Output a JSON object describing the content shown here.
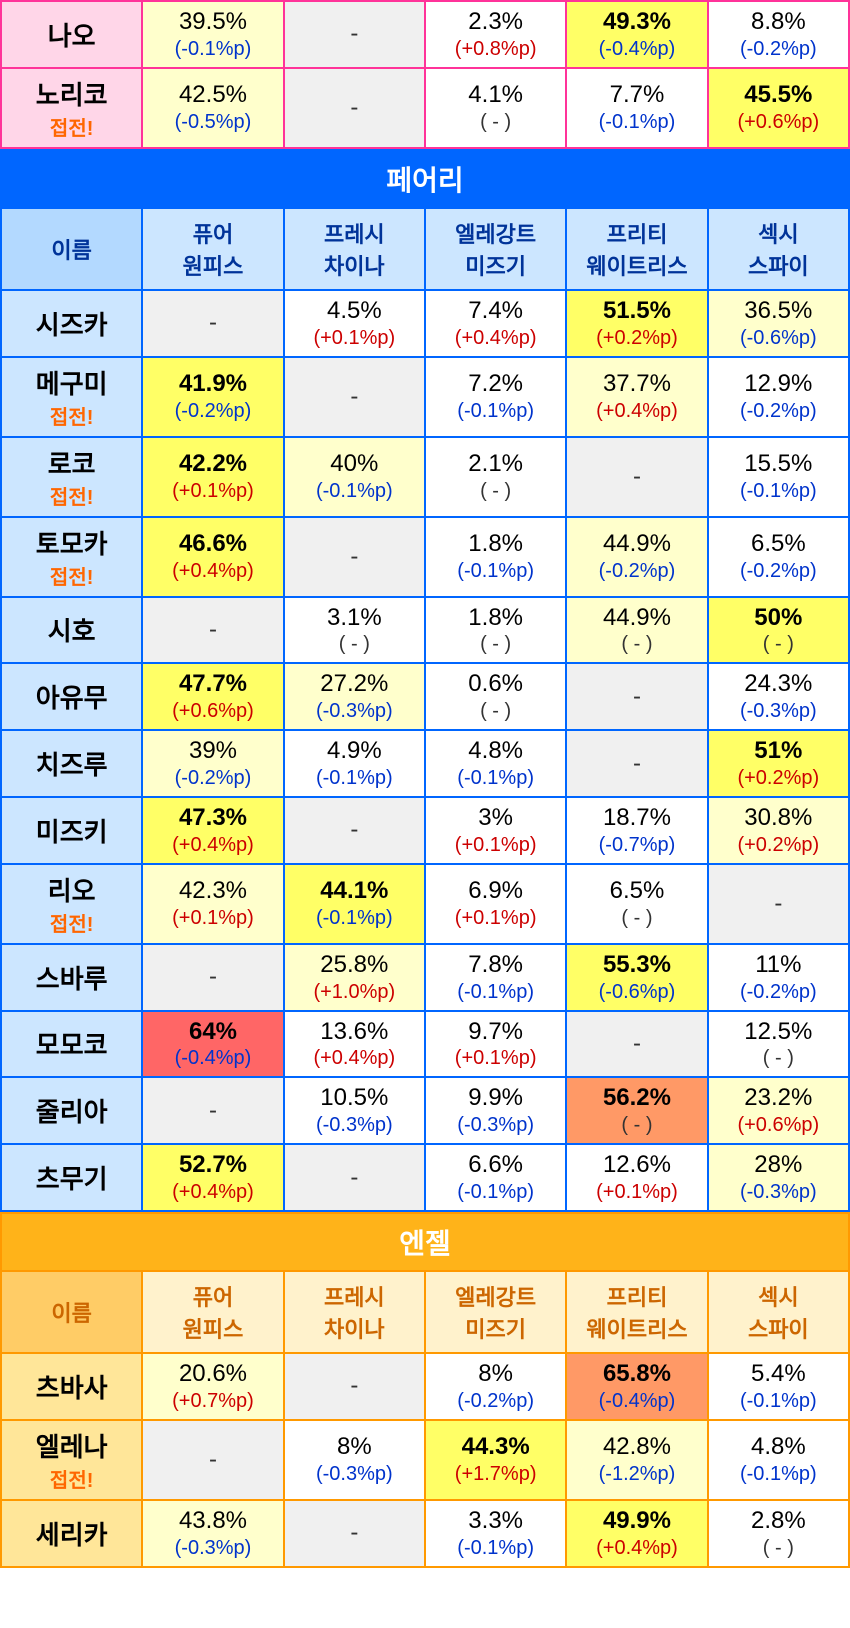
{
  "columns": [
    "퓨어\n원피스",
    "프레시\n차이나",
    "엘레강트\n미즈기",
    "프리티\n웨이트리스",
    "섹시\n스파이"
  ],
  "nameCol": "이름",
  "closeText": "접전!",
  "sections": [
    {
      "id": "pink",
      "borderClass": "pink-border",
      "nameClass": "pink-name",
      "rows": [
        {
          "name": "나오",
          "close": false,
          "cells": [
            {
              "pct": "39.5%",
              "delta": "(-0.1%p)",
              "dClass": "neg",
              "bg": "hl-yellow-lt",
              "bold": false
            },
            {
              "dash": true,
              "bg": "hl-gray"
            },
            {
              "pct": "2.3%",
              "delta": "(+0.8%p)",
              "dClass": "pos",
              "bg": "hl-white",
              "bold": false
            },
            {
              "pct": "49.3%",
              "delta": "(-0.4%p)",
              "dClass": "neg",
              "bg": "hl-yellow",
              "bold": true
            },
            {
              "pct": "8.8%",
              "delta": "(-0.2%p)",
              "dClass": "neg",
              "bg": "hl-white",
              "bold": false
            }
          ]
        },
        {
          "name": "노리코",
          "close": true,
          "cells": [
            {
              "pct": "42.5%",
              "delta": "(-0.5%p)",
              "dClass": "neg",
              "bg": "hl-yellow-lt",
              "bold": false
            },
            {
              "dash": true,
              "bg": "hl-gray"
            },
            {
              "pct": "4.1%",
              "delta": "( - )",
              "dClass": "neu",
              "bg": "hl-white",
              "bold": false
            },
            {
              "pct": "7.7%",
              "delta": "(-0.1%p)",
              "dClass": "neg",
              "bg": "hl-white",
              "bold": false
            },
            {
              "pct": "45.5%",
              "delta": "(+0.6%p)",
              "dClass": "pos",
              "bg": "hl-yellow",
              "bold": true
            }
          ]
        }
      ]
    },
    {
      "id": "blue",
      "title": "페어리",
      "borderClass": "blue-border",
      "headerBg": "blue-header-bg",
      "colHeadBg": "blue-colhead-bg",
      "nameColBg": "blue-name-col",
      "nameClass": "blue-name",
      "rows": [
        {
          "name": "시즈카",
          "close": false,
          "cells": [
            {
              "dash": true,
              "bg": "hl-gray"
            },
            {
              "pct": "4.5%",
              "delta": "(+0.1%p)",
              "dClass": "pos",
              "bg": "hl-white",
              "bold": false
            },
            {
              "pct": "7.4%",
              "delta": "(+0.4%p)",
              "dClass": "pos",
              "bg": "hl-white",
              "bold": false
            },
            {
              "pct": "51.5%",
              "delta": "(+0.2%p)",
              "dClass": "pos",
              "bg": "hl-yellow",
              "bold": true
            },
            {
              "pct": "36.5%",
              "delta": "(-0.6%p)",
              "dClass": "neg",
              "bg": "hl-yellow-lt",
              "bold": false
            }
          ]
        },
        {
          "name": "메구미",
          "close": true,
          "cells": [
            {
              "pct": "41.9%",
              "delta": "(-0.2%p)",
              "dClass": "neg",
              "bg": "hl-yellow",
              "bold": true
            },
            {
              "dash": true,
              "bg": "hl-gray"
            },
            {
              "pct": "7.2%",
              "delta": "(-0.1%p)",
              "dClass": "neg",
              "bg": "hl-white",
              "bold": false
            },
            {
              "pct": "37.7%",
              "delta": "(+0.4%p)",
              "dClass": "pos",
              "bg": "hl-yellow-lt",
              "bold": false
            },
            {
              "pct": "12.9%",
              "delta": "(-0.2%p)",
              "dClass": "neg",
              "bg": "hl-white",
              "bold": false
            }
          ]
        },
        {
          "name": "로코",
          "close": true,
          "cells": [
            {
              "pct": "42.2%",
              "delta": "(+0.1%p)",
              "dClass": "pos",
              "bg": "hl-yellow",
              "bold": true
            },
            {
              "pct": "40%",
              "delta": "(-0.1%p)",
              "dClass": "neg",
              "bg": "hl-yellow-lt",
              "bold": false
            },
            {
              "pct": "2.1%",
              "delta": "( - )",
              "dClass": "neu",
              "bg": "hl-white",
              "bold": false
            },
            {
              "dash": true,
              "bg": "hl-gray"
            },
            {
              "pct": "15.5%",
              "delta": "(-0.1%p)",
              "dClass": "neg",
              "bg": "hl-white",
              "bold": false
            }
          ]
        },
        {
          "name": "토모카",
          "close": true,
          "cells": [
            {
              "pct": "46.6%",
              "delta": "(+0.4%p)",
              "dClass": "pos",
              "bg": "hl-yellow",
              "bold": true
            },
            {
              "dash": true,
              "bg": "hl-gray"
            },
            {
              "pct": "1.8%",
              "delta": "(-0.1%p)",
              "dClass": "neg",
              "bg": "hl-white",
              "bold": false
            },
            {
              "pct": "44.9%",
              "delta": "(-0.2%p)",
              "dClass": "neg",
              "bg": "hl-yellow-lt",
              "bold": false
            },
            {
              "pct": "6.5%",
              "delta": "(-0.2%p)",
              "dClass": "neg",
              "bg": "hl-white",
              "bold": false
            }
          ]
        },
        {
          "name": "시호",
          "close": false,
          "cells": [
            {
              "dash": true,
              "bg": "hl-gray"
            },
            {
              "pct": "3.1%",
              "delta": "( - )",
              "dClass": "neu",
              "bg": "hl-white",
              "bold": false
            },
            {
              "pct": "1.8%",
              "delta": "( - )",
              "dClass": "neu",
              "bg": "hl-white",
              "bold": false
            },
            {
              "pct": "44.9%",
              "delta": "( - )",
              "dClass": "neu",
              "bg": "hl-yellow-lt",
              "bold": false
            },
            {
              "pct": "50%",
              "delta": "( - )",
              "dClass": "neu",
              "bg": "hl-yellow",
              "bold": true
            }
          ]
        },
        {
          "name": "아유무",
          "close": false,
          "cells": [
            {
              "pct": "47.7%",
              "delta": "(+0.6%p)",
              "dClass": "pos",
              "bg": "hl-yellow",
              "bold": true
            },
            {
              "pct": "27.2%",
              "delta": "(-0.3%p)",
              "dClass": "neg",
              "bg": "hl-yellow-lt",
              "bold": false
            },
            {
              "pct": "0.6%",
              "delta": "( - )",
              "dClass": "neu",
              "bg": "hl-white",
              "bold": false
            },
            {
              "dash": true,
              "bg": "hl-gray"
            },
            {
              "pct": "24.3%",
              "delta": "(-0.3%p)",
              "dClass": "neg",
              "bg": "hl-white",
              "bold": false
            }
          ]
        },
        {
          "name": "치즈루",
          "close": false,
          "cells": [
            {
              "pct": "39%",
              "delta": "(-0.2%p)",
              "dClass": "neg",
              "bg": "hl-yellow-lt",
              "bold": false
            },
            {
              "pct": "4.9%",
              "delta": "(-0.1%p)",
              "dClass": "neg",
              "bg": "hl-white",
              "bold": false
            },
            {
              "pct": "4.8%",
              "delta": "(-0.1%p)",
              "dClass": "neg",
              "bg": "hl-white",
              "bold": false
            },
            {
              "dash": true,
              "bg": "hl-gray"
            },
            {
              "pct": "51%",
              "delta": "(+0.2%p)",
              "dClass": "pos",
              "bg": "hl-yellow",
              "bold": true
            }
          ]
        },
        {
          "name": "미즈키",
          "close": false,
          "cells": [
            {
              "pct": "47.3%",
              "delta": "(+0.4%p)",
              "dClass": "pos",
              "bg": "hl-yellow",
              "bold": true
            },
            {
              "dash": true,
              "bg": "hl-gray"
            },
            {
              "pct": "3%",
              "delta": "(+0.1%p)",
              "dClass": "pos",
              "bg": "hl-white",
              "bold": false
            },
            {
              "pct": "18.7%",
              "delta": "(-0.7%p)",
              "dClass": "neg",
              "bg": "hl-white",
              "bold": false
            },
            {
              "pct": "30.8%",
              "delta": "(+0.2%p)",
              "dClass": "pos",
              "bg": "hl-yellow-lt",
              "bold": false
            }
          ]
        },
        {
          "name": "리오",
          "close": true,
          "cells": [
            {
              "pct": "42.3%",
              "delta": "(+0.1%p)",
              "dClass": "pos",
              "bg": "hl-yellow-lt",
              "bold": false
            },
            {
              "pct": "44.1%",
              "delta": "(-0.1%p)",
              "dClass": "neg",
              "bg": "hl-yellow",
              "bold": true
            },
            {
              "pct": "6.9%",
              "delta": "(+0.1%p)",
              "dClass": "pos",
              "bg": "hl-white",
              "bold": false
            },
            {
              "pct": "6.5%",
              "delta": "( - )",
              "dClass": "neu",
              "bg": "hl-white",
              "bold": false
            },
            {
              "dash": true,
              "bg": "hl-gray"
            }
          ]
        },
        {
          "name": "스바루",
          "close": false,
          "cells": [
            {
              "dash": true,
              "bg": "hl-gray"
            },
            {
              "pct": "25.8%",
              "delta": "(+1.0%p)",
              "dClass": "pos",
              "bg": "hl-yellow-lt",
              "bold": false
            },
            {
              "pct": "7.8%",
              "delta": "(-0.1%p)",
              "dClass": "neg",
              "bg": "hl-white",
              "bold": false
            },
            {
              "pct": "55.3%",
              "delta": "(-0.6%p)",
              "dClass": "neg",
              "bg": "hl-yellow",
              "bold": true
            },
            {
              "pct": "11%",
              "delta": "(-0.2%p)",
              "dClass": "neg",
              "bg": "hl-white",
              "bold": false
            }
          ]
        },
        {
          "name": "모모코",
          "close": false,
          "cells": [
            {
              "pct": "64%",
              "delta": "(-0.4%p)",
              "dClass": "neg",
              "bg": "hl-red",
              "bold": true
            },
            {
              "pct": "13.6%",
              "delta": "(+0.4%p)",
              "dClass": "pos",
              "bg": "hl-white",
              "bold": false
            },
            {
              "pct": "9.7%",
              "delta": "(+0.1%p)",
              "dClass": "pos",
              "bg": "hl-white",
              "bold": false
            },
            {
              "dash": true,
              "bg": "hl-gray"
            },
            {
              "pct": "12.5%",
              "delta": "( - )",
              "dClass": "neu",
              "bg": "hl-white",
              "bold": false
            }
          ]
        },
        {
          "name": "줄리아",
          "close": false,
          "cells": [
            {
              "dash": true,
              "bg": "hl-gray"
            },
            {
              "pct": "10.5%",
              "delta": "(-0.3%p)",
              "dClass": "neg",
              "bg": "hl-white",
              "bold": false
            },
            {
              "pct": "9.9%",
              "delta": "(-0.3%p)",
              "dClass": "neg",
              "bg": "hl-white",
              "bold": false
            },
            {
              "pct": "56.2%",
              "delta": "( - )",
              "dClass": "neu",
              "bg": "hl-orange",
              "bold": true
            },
            {
              "pct": "23.2%",
              "delta": "(+0.6%p)",
              "dClass": "pos",
              "bg": "hl-yellow-lt",
              "bold": false
            }
          ]
        },
        {
          "name": "츠무기",
          "close": false,
          "cells": [
            {
              "pct": "52.7%",
              "delta": "(+0.4%p)",
              "dClass": "pos",
              "bg": "hl-yellow",
              "bold": true
            },
            {
              "dash": true,
              "bg": "hl-gray"
            },
            {
              "pct": "6.6%",
              "delta": "(-0.1%p)",
              "dClass": "neg",
              "bg": "hl-white",
              "bold": false
            },
            {
              "pct": "12.6%",
              "delta": "(+0.1%p)",
              "dClass": "pos",
              "bg": "hl-white",
              "bold": false
            },
            {
              "pct": "28%",
              "delta": "(-0.3%p)",
              "dClass": "neg",
              "bg": "hl-yellow-lt",
              "bold": false
            }
          ]
        }
      ]
    },
    {
      "id": "orange",
      "title": "엔젤",
      "borderClass": "orange-border",
      "headerBg": "orange-header-bg",
      "colHeadBg": "orange-colhead-bg",
      "nameColBg": "orange-name-col",
      "nameClass": "orange-name",
      "rows": [
        {
          "name": "츠바사",
          "close": false,
          "cells": [
            {
              "pct": "20.6%",
              "delta": "(+0.7%p)",
              "dClass": "pos",
              "bg": "hl-yellow-lt",
              "bold": false
            },
            {
              "dash": true,
              "bg": "hl-gray"
            },
            {
              "pct": "8%",
              "delta": "(-0.2%p)",
              "dClass": "neg",
              "bg": "hl-white",
              "bold": false
            },
            {
              "pct": "65.8%",
              "delta": "(-0.4%p)",
              "dClass": "neg",
              "bg": "hl-orange",
              "bold": true
            },
            {
              "pct": "5.4%",
              "delta": "(-0.1%p)",
              "dClass": "neg",
              "bg": "hl-white",
              "bold": false
            }
          ]
        },
        {
          "name": "엘레나",
          "close": true,
          "cells": [
            {
              "dash": true,
              "bg": "hl-gray"
            },
            {
              "pct": "8%",
              "delta": "(-0.3%p)",
              "dClass": "neg",
              "bg": "hl-white",
              "bold": false
            },
            {
              "pct": "44.3%",
              "delta": "(+1.7%p)",
              "dClass": "pos",
              "bg": "hl-yellow",
              "bold": true
            },
            {
              "pct": "42.8%",
              "delta": "(-1.2%p)",
              "dClass": "neg",
              "bg": "hl-yellow-lt",
              "bold": false
            },
            {
              "pct": "4.8%",
              "delta": "(-0.1%p)",
              "dClass": "neg",
              "bg": "hl-white",
              "bold": false
            }
          ]
        },
        {
          "name": "세리카",
          "close": false,
          "cells": [
            {
              "pct": "43.8%",
              "delta": "(-0.3%p)",
              "dClass": "neg",
              "bg": "hl-yellow-lt",
              "bold": false
            },
            {
              "dash": true,
              "bg": "hl-gray"
            },
            {
              "pct": "3.3%",
              "delta": "(-0.1%p)",
              "dClass": "neg",
              "bg": "hl-white",
              "bold": false
            },
            {
              "pct": "49.9%",
              "delta": "(+0.4%p)",
              "dClass": "pos",
              "bg": "hl-yellow",
              "bold": true
            },
            {
              "pct": "2.8%",
              "delta": "( - )",
              "dClass": "neu",
              "bg": "hl-white",
              "bold": false
            }
          ]
        }
      ]
    }
  ]
}
